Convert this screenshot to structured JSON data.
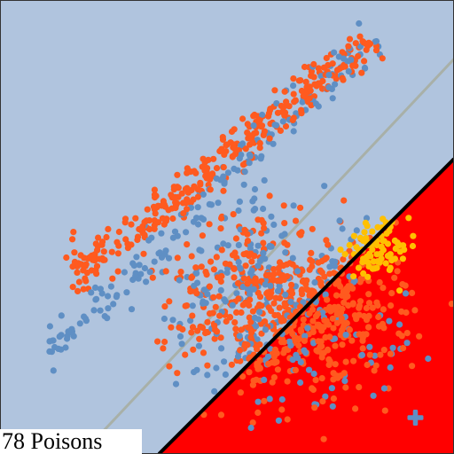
{
  "caption": "78 Poisons",
  "colors": {
    "background": "#b0c4de",
    "region": "#ff0000",
    "boundary": "#000000",
    "reference_line": "#a8b0a8",
    "frame": "#333333",
    "series_a": "#ff5a1f",
    "series_b": "#5f8fc4",
    "poison": "#ffc000",
    "target": "#5f8fc4"
  },
  "chart_data": {
    "type": "scatter",
    "title": "",
    "xlabel": "",
    "ylabel": "",
    "xlim": [
      0,
      1
    ],
    "ylim": [
      0,
      1
    ],
    "grid": false,
    "legend": "none",
    "shaded_region": {
      "color": "#ff0000",
      "boundary": [
        [
          0.35,
          0
        ],
        [
          1,
          0.65
        ]
      ],
      "side": "lower-right"
    },
    "decision_boundary": {
      "points": [
        [
          0.35,
          0
        ],
        [
          1,
          0.65
        ]
      ],
      "color": "#000000"
    },
    "reference_line": {
      "points": [
        [
          0.18,
          0
        ],
        [
          1,
          0.87
        ]
      ],
      "color": "#a8b0a8"
    },
    "clusters": [
      {
        "name": "",
        "color": "#ff5a1f",
        "kind": "line-band",
        "from": [
          0.15,
          0.38
        ],
        "to": [
          0.82,
          0.91
        ],
        "width": 0.022,
        "count": 330,
        "seed": 11
      },
      {
        "name": "",
        "color": "#5f8fc4",
        "kind": "line-band",
        "from": [
          0.08,
          0.2
        ],
        "to": [
          0.82,
          0.92
        ],
        "width": 0.018,
        "count": 170,
        "seed": 23
      },
      {
        "name": "",
        "color": "#ff5a1f",
        "kind": "blob",
        "center": [
          0.62,
          0.35
        ],
        "spread": [
          0.12,
          0.09
        ],
        "count": 460,
        "seed": 37
      },
      {
        "name": "",
        "color": "#5f8fc4",
        "kind": "blob",
        "center": [
          0.58,
          0.36
        ],
        "spread": [
          0.12,
          0.1
        ],
        "count": 200,
        "seed": 41
      },
      {
        "name": "",
        "color": "#ff5a1f",
        "kind": "blob",
        "center": [
          0.7,
          0.26
        ],
        "spread": [
          0.11,
          0.08
        ],
        "count": 140,
        "seed": 53
      },
      {
        "name": "",
        "color": "#5f8fc4",
        "kind": "blob",
        "center": [
          0.68,
          0.22
        ],
        "spread": [
          0.12,
          0.08
        ],
        "count": 50,
        "seed": 67
      }
    ],
    "poisons": {
      "count": 78,
      "color": "#ffc000",
      "seed": 89,
      "points": [
        [
          0.78,
          0.48
        ],
        [
          0.8,
          0.47
        ],
        [
          0.81,
          0.46
        ],
        [
          0.79,
          0.45
        ],
        [
          0.82,
          0.49
        ],
        [
          0.84,
          0.48
        ],
        [
          0.83,
          0.47
        ],
        [
          0.85,
          0.51
        ],
        [
          0.86,
          0.5
        ],
        [
          0.87,
          0.47
        ],
        [
          0.88,
          0.46
        ],
        [
          0.9,
          0.52
        ],
        [
          0.84,
          0.43
        ],
        [
          0.86,
          0.44
        ],
        [
          0.85,
          0.42
        ],
        [
          0.77,
          0.46
        ],
        [
          0.78,
          0.44
        ],
        [
          0.8,
          0.43
        ],
        [
          0.82,
          0.45
        ],
        [
          0.87,
          0.43
        ],
        [
          0.89,
          0.45
        ],
        [
          0.91,
          0.48
        ],
        [
          0.83,
          0.41
        ],
        [
          0.86,
          0.41
        ],
        [
          0.88,
          0.36
        ],
        [
          0.81,
          0.39
        ],
        [
          0.79,
          0.41
        ],
        [
          0.76,
          0.44
        ],
        [
          0.75,
          0.45
        ],
        [
          0.83,
          0.46
        ]
      ]
    },
    "target": {
      "x": 0.915,
      "y": 0.08,
      "marker": "plus",
      "color": "#5f8fc4"
    }
  }
}
